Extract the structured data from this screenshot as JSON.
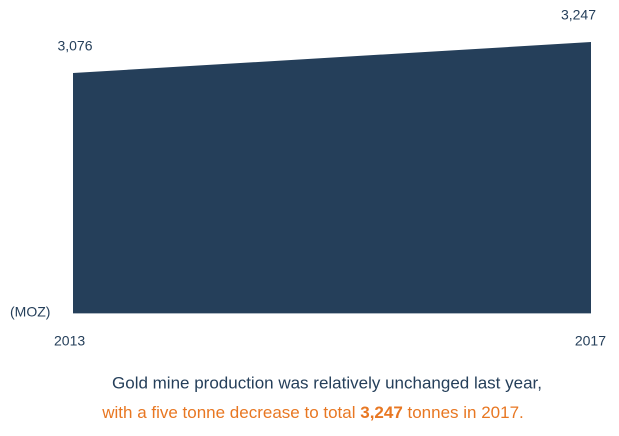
{
  "chart_data": {
    "type": "area",
    "x": [
      2013,
      2017
    ],
    "xlim": [
      2013,
      2017
    ],
    "xticks": [
      2013,
      2017
    ],
    "values": [
      3076,
      3247
    ],
    "value_labels": [
      "3,076",
      "3,247"
    ],
    "ylim": [
      1750,
      3250
    ],
    "color": "#253f5a",
    "y_label": "(MOZ)",
    "caption": {
      "line1": "Gold mine production was relatively unchanged last year,",
      "line2": {
        "before": "with a five tonne decrease to total ",
        "bold": "3,247",
        "after": " tonnes in 2017."
      },
      "color1": "#253f5a",
      "color2": "#e87722"
    }
  }
}
